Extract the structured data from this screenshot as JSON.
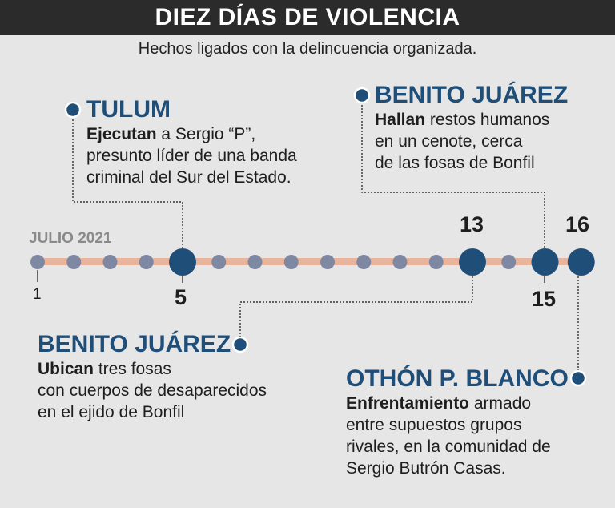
{
  "title": "DIEZ DÍAS DE VIOLENCIA",
  "subtitle": "Hechos ligados con la delincuencia organizada.",
  "timeline": {
    "period_label": "JULIO 2021",
    "start_day": "1",
    "days_total": 16,
    "key_days": [
      5,
      13,
      15,
      16
    ],
    "colors": {
      "bar": "#e8b49c",
      "minor_dot": "#7e88a2",
      "major_dot": "#1f4e79",
      "place": "#1f4e79",
      "connector": "#333333"
    }
  },
  "events": [
    {
      "day": "5",
      "place": "TULUM",
      "verb": "Ejecutan",
      "lines": [
        " a Sergio “P”,",
        "presunto líder de una banda",
        "criminal del Sur del Estado."
      ]
    },
    {
      "day": "15",
      "place": "BENITO JUÁREZ",
      "verb": "Hallan",
      "lines": [
        " restos humanos",
        "en un cenote, cerca",
        "de las fosas de Bonfil"
      ]
    },
    {
      "day": "13",
      "place": "BENITO JUÁREZ",
      "verb": "Ubican",
      "lines": [
        " tres fosas",
        "con cuerpos de desaparecidos",
        "en el ejido de Bonfil"
      ]
    },
    {
      "day": "16",
      "place": "OTHÓN P. BLANCO",
      "verb": "Enfrentamiento",
      "lines": [
        " armado",
        "entre supuestos grupos",
        "rivales, en la comunidad de",
        "Sergio Butrón Casas."
      ]
    }
  ]
}
